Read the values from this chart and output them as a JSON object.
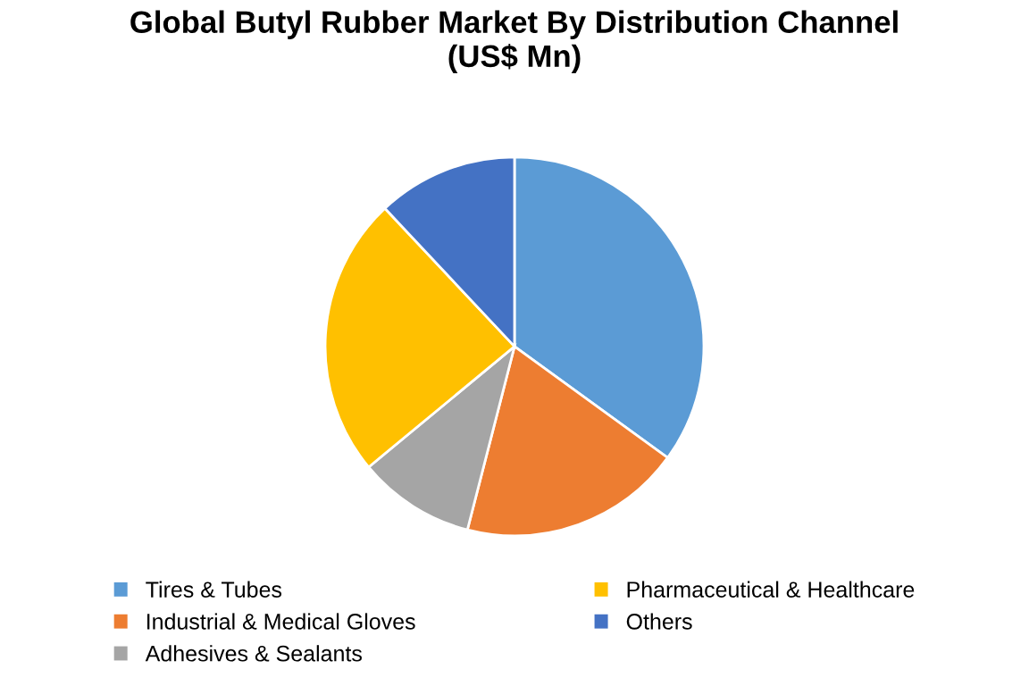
{
  "chart_data": {
    "type": "pie",
    "title": "Global Butyl Rubber Market By Distribution Channel\n(US$ Mn)",
    "categories": [
      "Tires & Tubes",
      "Industrial & Medical Gloves",
      "Adhesives & Sealants",
      "Pharmaceutical & Healthcare",
      "Others"
    ],
    "values": [
      35,
      19,
      10,
      24,
      12
    ],
    "colors": [
      "#5b9bd5",
      "#ed7d31",
      "#a5a5a5",
      "#ffc000",
      "#4472c4"
    ],
    "legend": "bottom"
  }
}
